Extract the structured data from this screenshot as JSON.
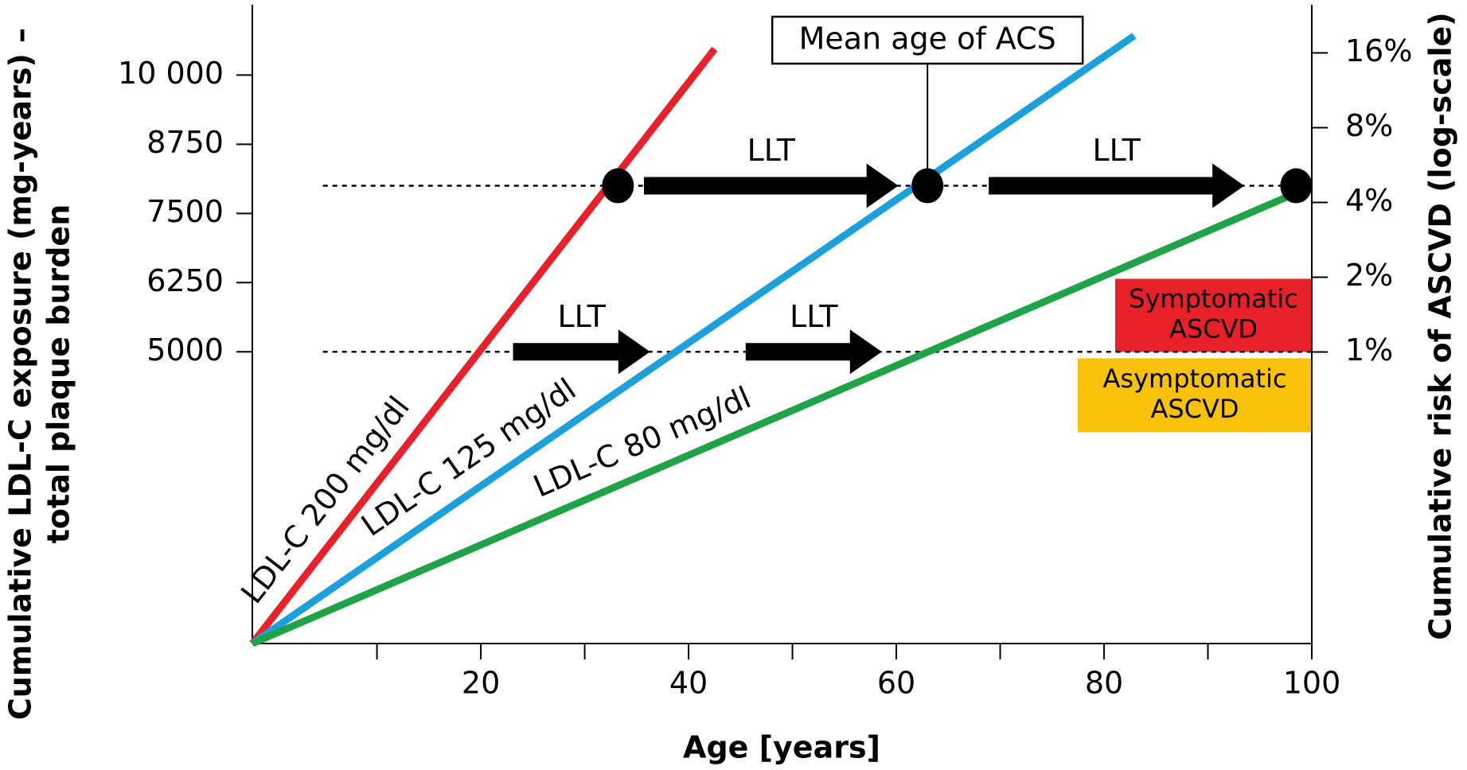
{
  "chart_data": {
    "type": "line",
    "xlabel": "Age [years]",
    "ylabel": [
      "Cumulative LDL-C exposure (mg-years) –",
      "total plaque burden"
    ],
    "y2label": "Cumulative risk of ASCVD (log-scale)",
    "xlim": [
      -2,
      100
    ],
    "xticks": [
      20,
      40,
      60,
      80,
      100
    ],
    "xminorticks": [
      10,
      30,
      50,
      70,
      90
    ],
    "ylim": [
      -270,
      11270
    ],
    "yticks": [
      5000,
      6250,
      7500,
      8750,
      {
        "value": 10000,
        "label": "10 000"
      }
    ],
    "y2lim": [
      0.067,
      25
    ],
    "y2scale": "log",
    "y2ticks": [
      {
        "value": 1,
        "label": "1%"
      },
      {
        "value": 2,
        "label": "2%"
      },
      {
        "value": 4,
        "label": "4%"
      },
      {
        "value": 8,
        "label": "8%"
      },
      {
        "value": 16,
        "label": "16%"
      }
    ],
    "series": [
      {
        "name": "LDL-C 200 mg/dl",
        "color": "#e8202a",
        "x": [
          -2,
          42.5
        ],
        "values": [
          -270,
          10470
        ]
      },
      {
        "name": "LDL-C 125 mg/dl",
        "color": "#1ba0db",
        "x": [
          -2,
          82.9
        ],
        "values": [
          -270,
          10710
        ]
      },
      {
        "name": "LDL-C 80 mg/dl",
        "color": "#1fa346",
        "x": [
          -2,
          98.5
        ],
        "values": [
          -270,
          7870
        ]
      }
    ],
    "points": {
      "x": [
        33.2,
        63,
        98.5
      ],
      "values": [
        8000,
        8000,
        8000
      ],
      "color": "#000000"
    },
    "reference_lines": [
      {
        "y": 8000,
        "x": [
          4.8,
          98.5
        ]
      },
      {
        "y": 5000,
        "x": [
          4.8,
          100
        ]
      }
    ],
    "arrows": [
      {
        "text": "LLT",
        "x": [
          35.7,
          60.2
        ],
        "y": 8000
      },
      {
        "text": "LLT",
        "x": [
          68.9,
          93.5
        ],
        "y": 8000
      },
      {
        "text": "LLT",
        "x": [
          23.1,
          36.3
        ],
        "y": 5000
      },
      {
        "text": "LLT",
        "x": [
          45.5,
          58.6
        ],
        "y": 5000
      }
    ],
    "callout": {
      "text": "Mean age of ACS",
      "x": 63
    },
    "zones": [
      {
        "lines": [
          "Symptomatic",
          "ASCVD"
        ],
        "color": "#e8202a"
      },
      {
        "lines": [
          "Asymptomatic",
          "ASCVD"
        ],
        "color": "#f9c20a"
      }
    ]
  }
}
